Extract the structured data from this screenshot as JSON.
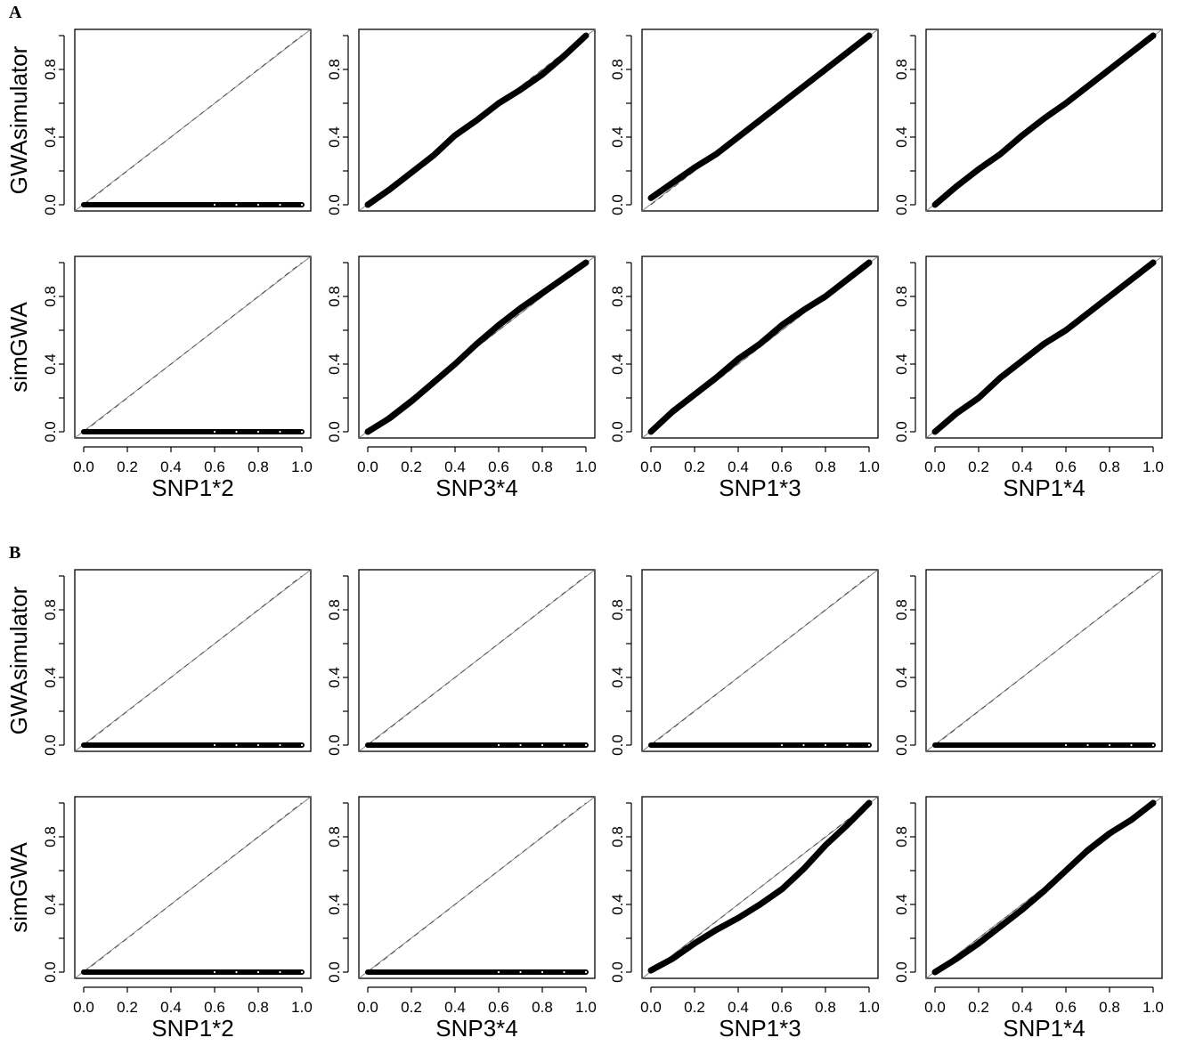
{
  "panels": [
    "A",
    "B"
  ],
  "chart_data": [
    {
      "type": "scatter",
      "panel": "A",
      "ylabel": "GWAsimulator",
      "xlabel": "",
      "xlim": [
        0,
        1
      ],
      "ylim": [
        0,
        1
      ],
      "xticks": [
        "0.0",
        "0.2",
        "0.4",
        "0.6",
        "0.8",
        "1.0"
      ],
      "yticks": [
        "0.0",
        "0.4",
        "0.8"
      ],
      "reference_line": {
        "x": [
          0,
          1
        ],
        "y": [
          0,
          1
        ]
      },
      "series": [
        {
          "x": [
            0.0,
            1.0
          ],
          "y": [
            0.0,
            0.0
          ]
        }
      ]
    },
    {
      "type": "scatter",
      "panel": "A",
      "ylabel": "",
      "xlabel": "",
      "xlim": [
        0,
        1
      ],
      "ylim": [
        0,
        1
      ],
      "xticks": [
        "0.0",
        "0.2",
        "0.4",
        "0.6",
        "0.8",
        "1.0"
      ],
      "yticks": [
        "0.0",
        "0.4",
        "0.8"
      ],
      "reference_line": {
        "x": [
          0,
          1
        ],
        "y": [
          0,
          1
        ]
      },
      "series": [
        {
          "x": [
            0,
            0.1,
            0.2,
            0.3,
            0.4,
            0.5,
            0.6,
            0.7,
            0.8,
            0.9,
            1.0
          ],
          "y": [
            0,
            0.09,
            0.19,
            0.29,
            0.41,
            0.5,
            0.6,
            0.68,
            0.77,
            0.88,
            1.0
          ]
        }
      ]
    },
    {
      "type": "scatter",
      "panel": "A",
      "ylabel": "",
      "xlabel": "",
      "xlim": [
        0,
        1
      ],
      "ylim": [
        0,
        1
      ],
      "xticks": [
        "0.0",
        "0.2",
        "0.4",
        "0.6",
        "0.8",
        "1.0"
      ],
      "yticks": [
        "0.0",
        "0.4",
        "0.8"
      ],
      "reference_line": {
        "x": [
          0,
          1
        ],
        "y": [
          0,
          1
        ]
      },
      "series": [
        {
          "x": [
            0,
            0.1,
            0.2,
            0.3,
            0.4,
            0.5,
            0.6,
            0.7,
            0.8,
            0.9,
            1.0
          ],
          "y": [
            0.04,
            0.13,
            0.22,
            0.3,
            0.4,
            0.5,
            0.6,
            0.7,
            0.8,
            0.9,
            1.0
          ]
        }
      ]
    },
    {
      "type": "scatter",
      "panel": "A",
      "ylabel": "",
      "xlabel": "",
      "xlim": [
        0,
        1
      ],
      "ylim": [
        0,
        1
      ],
      "xticks": [
        "0.0",
        "0.2",
        "0.4",
        "0.6",
        "0.8",
        "1.0"
      ],
      "yticks": [
        "0.0",
        "0.4",
        "0.8"
      ],
      "reference_line": {
        "x": [
          0,
          1
        ],
        "y": [
          0,
          1
        ]
      },
      "series": [
        {
          "x": [
            0,
            0.1,
            0.2,
            0.3,
            0.4,
            0.5,
            0.6,
            0.7,
            0.8,
            0.9,
            1.0
          ],
          "y": [
            0,
            0.11,
            0.21,
            0.3,
            0.41,
            0.51,
            0.6,
            0.7,
            0.8,
            0.9,
            1.0
          ]
        }
      ]
    },
    {
      "type": "scatter",
      "panel": "A",
      "ylabel": "simGWA",
      "xlabel": "SNP1*2",
      "xlim": [
        0,
        1
      ],
      "ylim": [
        0,
        1
      ],
      "xticks": [
        "0.0",
        "0.2",
        "0.4",
        "0.6",
        "0.8",
        "1.0"
      ],
      "yticks": [
        "0.0",
        "0.4",
        "0.8"
      ],
      "reference_line": {
        "x": [
          0,
          1
        ],
        "y": [
          0,
          1
        ]
      },
      "series": [
        {
          "x": [
            0.0,
            1.0
          ],
          "y": [
            0.0,
            0.0
          ]
        }
      ]
    },
    {
      "type": "scatter",
      "panel": "A",
      "ylabel": "",
      "xlabel": "SNP3*4",
      "xlim": [
        0,
        1
      ],
      "ylim": [
        0,
        1
      ],
      "xticks": [
        "0.0",
        "0.2",
        "0.4",
        "0.6",
        "0.8",
        "1.0"
      ],
      "yticks": [
        "0.0",
        "0.4",
        "0.8"
      ],
      "reference_line": {
        "x": [
          0,
          1
        ],
        "y": [
          0,
          1
        ]
      },
      "series": [
        {
          "x": [
            0,
            0.1,
            0.2,
            0.3,
            0.4,
            0.5,
            0.6,
            0.7,
            0.8,
            0.9,
            1.0
          ],
          "y": [
            0,
            0.08,
            0.18,
            0.29,
            0.4,
            0.52,
            0.63,
            0.73,
            0.82,
            0.91,
            1.0
          ]
        }
      ]
    },
    {
      "type": "scatter",
      "panel": "A",
      "ylabel": "",
      "xlabel": "SNP1*3",
      "xlim": [
        0,
        1
      ],
      "ylim": [
        0,
        1
      ],
      "xticks": [
        "0.0",
        "0.2",
        "0.4",
        "0.6",
        "0.8",
        "1.0"
      ],
      "yticks": [
        "0.0",
        "0.4",
        "0.8"
      ],
      "reference_line": {
        "x": [
          0,
          1
        ],
        "y": [
          0,
          1
        ]
      },
      "series": [
        {
          "x": [
            0,
            0.1,
            0.2,
            0.3,
            0.4,
            0.5,
            0.6,
            0.7,
            0.8,
            0.9,
            1.0
          ],
          "y": [
            0,
            0.12,
            0.22,
            0.32,
            0.43,
            0.52,
            0.63,
            0.72,
            0.8,
            0.9,
            1.0
          ]
        }
      ]
    },
    {
      "type": "scatter",
      "panel": "A",
      "ylabel": "",
      "xlabel": "SNP1*4",
      "xlim": [
        0,
        1
      ],
      "ylim": [
        0,
        1
      ],
      "xticks": [
        "0.0",
        "0.2",
        "0.4",
        "0.6",
        "0.8",
        "1.0"
      ],
      "yticks": [
        "0.0",
        "0.4",
        "0.8"
      ],
      "reference_line": {
        "x": [
          0,
          1
        ],
        "y": [
          0,
          1
        ]
      },
      "series": [
        {
          "x": [
            0,
            0.1,
            0.2,
            0.3,
            0.4,
            0.5,
            0.6,
            0.7,
            0.8,
            0.9,
            1.0
          ],
          "y": [
            0,
            0.11,
            0.2,
            0.32,
            0.42,
            0.52,
            0.6,
            0.7,
            0.8,
            0.9,
            1.0
          ]
        }
      ]
    },
    {
      "type": "scatter",
      "panel": "B",
      "ylabel": "GWAsimulator",
      "xlabel": "",
      "xlim": [
        0,
        1
      ],
      "ylim": [
        0,
        1
      ],
      "xticks": [
        "0.0",
        "0.2",
        "0.4",
        "0.6",
        "0.8",
        "1.0"
      ],
      "yticks": [
        "0.0",
        "0.4",
        "0.8"
      ],
      "reference_line": {
        "x": [
          0,
          1
        ],
        "y": [
          0,
          1
        ]
      },
      "series": [
        {
          "x": [
            0.0,
            1.0
          ],
          "y": [
            0.0,
            0.0
          ]
        }
      ]
    },
    {
      "type": "scatter",
      "panel": "B",
      "ylabel": "",
      "xlabel": "",
      "xlim": [
        0,
        1
      ],
      "ylim": [
        0,
        1
      ],
      "xticks": [
        "0.0",
        "0.2",
        "0.4",
        "0.6",
        "0.8",
        "1.0"
      ],
      "yticks": [
        "0.0",
        "0.4",
        "0.8"
      ],
      "reference_line": {
        "x": [
          0,
          1
        ],
        "y": [
          0,
          1
        ]
      },
      "series": [
        {
          "x": [
            0.0,
            1.0
          ],
          "y": [
            0.0,
            0.0
          ]
        }
      ]
    },
    {
      "type": "scatter",
      "panel": "B",
      "ylabel": "",
      "xlabel": "",
      "xlim": [
        0,
        1
      ],
      "ylim": [
        0,
        1
      ],
      "xticks": [
        "0.0",
        "0.2",
        "0.4",
        "0.6",
        "0.8",
        "1.0"
      ],
      "yticks": [
        "0.0",
        "0.4",
        "0.8"
      ],
      "reference_line": {
        "x": [
          0,
          1
        ],
        "y": [
          0,
          1
        ]
      },
      "series": [
        {
          "x": [
            0.0,
            1.0
          ],
          "y": [
            0.0,
            0.0
          ]
        }
      ]
    },
    {
      "type": "scatter",
      "panel": "B",
      "ylabel": "",
      "xlabel": "",
      "xlim": [
        0,
        1
      ],
      "ylim": [
        0,
        1
      ],
      "xticks": [
        "0.0",
        "0.2",
        "0.4",
        "0.6",
        "0.8",
        "1.0"
      ],
      "yticks": [
        "0.0",
        "0.4",
        "0.8"
      ],
      "reference_line": {
        "x": [
          0,
          1
        ],
        "y": [
          0,
          1
        ]
      },
      "series": [
        {
          "x": [
            0.0,
            1.0
          ],
          "y": [
            0.0,
            0.0
          ]
        }
      ]
    },
    {
      "type": "scatter",
      "panel": "B",
      "ylabel": "simGWA",
      "xlabel": "SNP1*2",
      "xlim": [
        0,
        1
      ],
      "ylim": [
        0,
        1
      ],
      "xticks": [
        "0.0",
        "0.2",
        "0.4",
        "0.6",
        "0.8",
        "1.0"
      ],
      "yticks": [
        "0.0",
        "0.4",
        "0.8"
      ],
      "reference_line": {
        "x": [
          0,
          1
        ],
        "y": [
          0,
          1
        ]
      },
      "series": [
        {
          "x": [
            0.0,
            1.0
          ],
          "y": [
            0.0,
            0.0
          ]
        }
      ]
    },
    {
      "type": "scatter",
      "panel": "B",
      "ylabel": "",
      "xlabel": "SNP3*4",
      "xlim": [
        0,
        1
      ],
      "ylim": [
        0,
        1
      ],
      "xticks": [
        "0.0",
        "0.2",
        "0.4",
        "0.6",
        "0.8",
        "1.0"
      ],
      "yticks": [
        "0.0",
        "0.4",
        "0.8"
      ],
      "reference_line": {
        "x": [
          0,
          1
        ],
        "y": [
          0,
          1
        ]
      },
      "series": [
        {
          "x": [
            0.0,
            1.0
          ],
          "y": [
            0.0,
            0.0
          ]
        }
      ]
    },
    {
      "type": "scatter",
      "panel": "B",
      "ylabel": "",
      "xlabel": "SNP1*3",
      "xlim": [
        0,
        1
      ],
      "ylim": [
        0,
        1
      ],
      "xticks": [
        "0.0",
        "0.2",
        "0.4",
        "0.6",
        "0.8",
        "1.0"
      ],
      "yticks": [
        "0.0",
        "0.4",
        "0.8"
      ],
      "reference_line": {
        "x": [
          0,
          1
        ],
        "y": [
          0,
          1
        ]
      },
      "series": [
        {
          "x": [
            0,
            0.1,
            0.2,
            0.3,
            0.4,
            0.5,
            0.6,
            0.7,
            0.8,
            0.9,
            1.0
          ],
          "y": [
            0.01,
            0.08,
            0.17,
            0.25,
            0.32,
            0.4,
            0.49,
            0.61,
            0.75,
            0.87,
            1.0
          ]
        }
      ]
    },
    {
      "type": "scatter",
      "panel": "B",
      "ylabel": "",
      "xlabel": "SNP1*4",
      "xlim": [
        0,
        1
      ],
      "ylim": [
        0,
        1
      ],
      "xticks": [
        "0.0",
        "0.2",
        "0.4",
        "0.6",
        "0.8",
        "1.0"
      ],
      "yticks": [
        "0.0",
        "0.4",
        "0.8"
      ],
      "reference_line": {
        "x": [
          0,
          1
        ],
        "y": [
          0,
          1
        ]
      },
      "series": [
        {
          "x": [
            0,
            0.1,
            0.2,
            0.3,
            0.4,
            0.5,
            0.6,
            0.7,
            0.8,
            0.9,
            1.0
          ],
          "y": [
            0,
            0.08,
            0.17,
            0.27,
            0.37,
            0.48,
            0.6,
            0.72,
            0.82,
            0.9,
            1.0
          ]
        }
      ]
    }
  ]
}
